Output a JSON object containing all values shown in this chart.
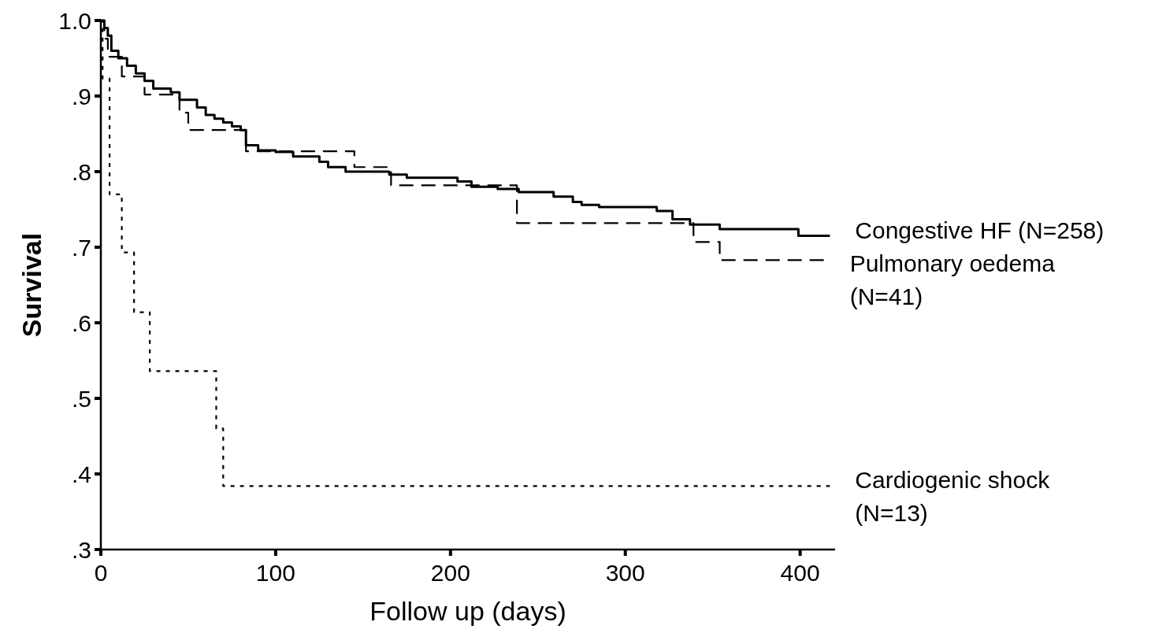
{
  "chart_data": {
    "type": "step",
    "xlabel": "Follow up (days)",
    "ylabel": "Survival",
    "xlim": [
      0,
      420
    ],
    "xticks": [
      0,
      100,
      200,
      300,
      400
    ],
    "ylim": [
      0.3,
      1.0
    ],
    "yticks": [
      {
        "value": 0.3,
        "label": ".3"
      },
      {
        "value": 0.4,
        "label": ".4"
      },
      {
        "value": 0.5,
        "label": ".5"
      },
      {
        "value": 0.6,
        "label": ".6"
      },
      {
        "value": 0.7,
        "label": ".7"
      },
      {
        "value": 0.8,
        "label": ".8"
      },
      {
        "value": 0.9,
        "label": ".9"
      },
      {
        "value": 1.0,
        "label": "1.0"
      }
    ],
    "grid": false,
    "marker": "none",
    "series": [
      {
        "name": "Congestive HF (N=258)",
        "color": "#000000",
        "line_style": "solid",
        "x": [
          0,
          2,
          4,
          6,
          10,
          15,
          20,
          25,
          30,
          40,
          45,
          55,
          60,
          65,
          70,
          75,
          80,
          83,
          90,
          100,
          110,
          125,
          130,
          140,
          165,
          175,
          204,
          212,
          227,
          239,
          259,
          270,
          275,
          285,
          318,
          327,
          337,
          354,
          399,
          417
        ],
        "values": [
          1.0,
          0.99,
          0.98,
          0.96,
          0.95,
          0.94,
          0.93,
          0.92,
          0.91,
          0.905,
          0.895,
          0.885,
          0.875,
          0.87,
          0.865,
          0.86,
          0.855,
          0.835,
          0.828,
          0.826,
          0.82,
          0.813,
          0.806,
          0.8,
          0.796,
          0.792,
          0.787,
          0.78,
          0.777,
          0.773,
          0.767,
          0.76,
          0.756,
          0.753,
          0.748,
          0.737,
          0.73,
          0.724,
          0.715,
          0.715
        ]
      },
      {
        "name": "Pulmonary oedema (N=41)",
        "color": "#000000",
        "line_style": "dashed",
        "x": [
          0,
          2,
          4,
          12,
          25,
          45,
          50,
          83,
          145,
          166,
          238,
          339,
          354,
          414
        ],
        "values": [
          1.0,
          0.976,
          0.952,
          0.926,
          0.902,
          0.878,
          0.855,
          0.827,
          0.806,
          0.782,
          0.732,
          0.707,
          0.683,
          0.683
        ]
      },
      {
        "name": "Cardiogenic shock (N=13)",
        "color": "#000000",
        "line_style": "dotted",
        "x": [
          0,
          1,
          5,
          12,
          19,
          28,
          66,
          70,
          417
        ],
        "values": [
          1.0,
          0.923,
          0.77,
          0.693,
          0.614,
          0.536,
          0.46,
          0.384,
          0.384
        ]
      }
    ]
  }
}
